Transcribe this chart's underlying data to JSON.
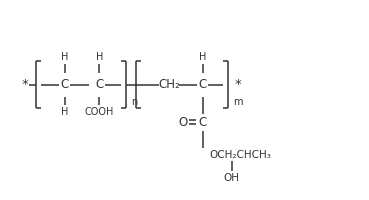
{
  "background_color": "#ffffff",
  "fig_width": 3.69,
  "fig_height": 2.0,
  "dpi": 100,
  "font_size": 8.5,
  "line_color": "#333333",
  "text_color": "#333333",
  "backbone_y": 3.0,
  "xlim": [
    0,
    9.5
  ],
  "ylim": [
    0,
    5.2
  ]
}
